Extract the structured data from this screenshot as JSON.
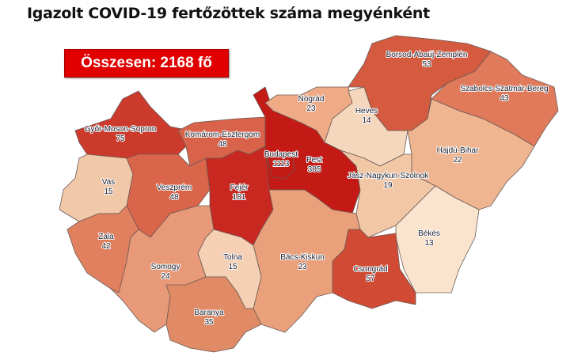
{
  "title": "Igazolt COVID-19 fertőzöttek száma megyénként",
  "total_label": "Összesen: 2168 fő",
  "total_color": "#e00000",
  "map": {
    "counties": [
      {
        "id": "gyor-moson-sopron",
        "name": "Győr-Moson-Sopron",
        "value": "75",
        "color": "#cc3a2c"
      },
      {
        "id": "vas",
        "name": "Vas",
        "value": "15",
        "color": "#f2c9a8"
      },
      {
        "id": "komarom-esztergom",
        "name": "Komárom-Esztergom",
        "value": "48",
        "color": "#d9634a"
      },
      {
        "id": "veszprem",
        "name": "Veszprém",
        "value": "48",
        "color": "#d9654b"
      },
      {
        "id": "fejer",
        "name": "Fejér",
        "value": "181",
        "color": "#c92820"
      },
      {
        "id": "pest",
        "name": "Pest",
        "value": "305",
        "color": "#c41a15"
      },
      {
        "id": "budapest",
        "name": "Budapest",
        "value": "1113",
        "color": "#c41a15"
      },
      {
        "id": "nograd",
        "name": "Nógrád",
        "value": "23",
        "color": "#eeab86"
      },
      {
        "id": "heves",
        "name": "Heves",
        "value": "14",
        "color": "#f5d7bd"
      },
      {
        "id": "borsod-abauj-zemplen",
        "name": "Borsod-Abaúj-Zemplén",
        "value": "53",
        "color": "#d45a40"
      },
      {
        "id": "szabolcs-szatmar-bereg",
        "name": "Szabolcs-Szatmár-Bereg",
        "value": "43",
        "color": "#e07a5a"
      },
      {
        "id": "hajdu-bihar",
        "name": "Hajdú-Bihar",
        "value": "22",
        "color": "#efb590"
      },
      {
        "id": "jasz-nagykun-szolnok",
        "name": "Jász-Nagykun-Szolnok",
        "value": "19",
        "color": "#f2c7a6"
      },
      {
        "id": "bekes",
        "name": "Békés",
        "value": "13",
        "color": "#fbe4cd"
      },
      {
        "id": "csongrad",
        "name": "Csongrád",
        "value": "57",
        "color": "#d14a34"
      },
      {
        "id": "bacs-kiskun",
        "name": "Bács-Kiskun",
        "value": "23",
        "color": "#eaa07a"
      },
      {
        "id": "tolna",
        "name": "Tolna",
        "value": "15",
        "color": "#f5d0b4"
      },
      {
        "id": "somogy",
        "name": "Somogy",
        "value": "24",
        "color": "#e89a78"
      },
      {
        "id": "zala",
        "name": "Zala",
        "value": "42",
        "color": "#e0805f"
      },
      {
        "id": "baranya",
        "name": "Baranya",
        "value": "35",
        "color": "#e08a66"
      }
    ]
  }
}
